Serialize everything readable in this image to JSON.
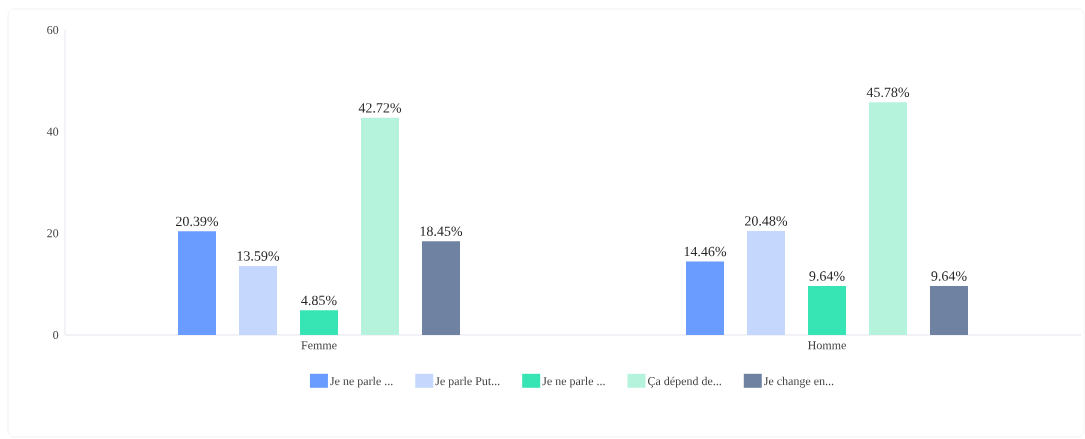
{
  "chart_data": {
    "type": "bar",
    "categories": [
      "Femme",
      "Homme"
    ],
    "series": [
      {
        "name": "Je ne parle ...",
        "color": "#6a9bff",
        "values": [
          20.39,
          14.46
        ],
        "value_labels": [
          "20.39%",
          "14.46%"
        ]
      },
      {
        "name": "Je parle Put...",
        "color": "#c5d7fd",
        "values": [
          13.59,
          20.48
        ],
        "value_labels": [
          "13.59%",
          "20.48%"
        ]
      },
      {
        "name": "Je ne parle ...",
        "color": "#36e4b4",
        "values": [
          4.85,
          9.64
        ],
        "value_labels": [
          "4.85%",
          "9.64%"
        ]
      },
      {
        "name": "Ça dépend de...",
        "color": "#b6f3dc",
        "values": [
          42.72,
          45.78
        ],
        "value_labels": [
          "42.72%",
          "45.78%"
        ]
      },
      {
        "name": "Je change en...",
        "color": "#6f82a2",
        "values": [
          18.45,
          9.64
        ],
        "value_labels": [
          "18.45%",
          "9.64%"
        ]
      }
    ],
    "ylim": [
      0,
      60
    ],
    "yticks": [
      0,
      20,
      40,
      60
    ],
    "grid": false,
    "legend": "bottom"
  }
}
